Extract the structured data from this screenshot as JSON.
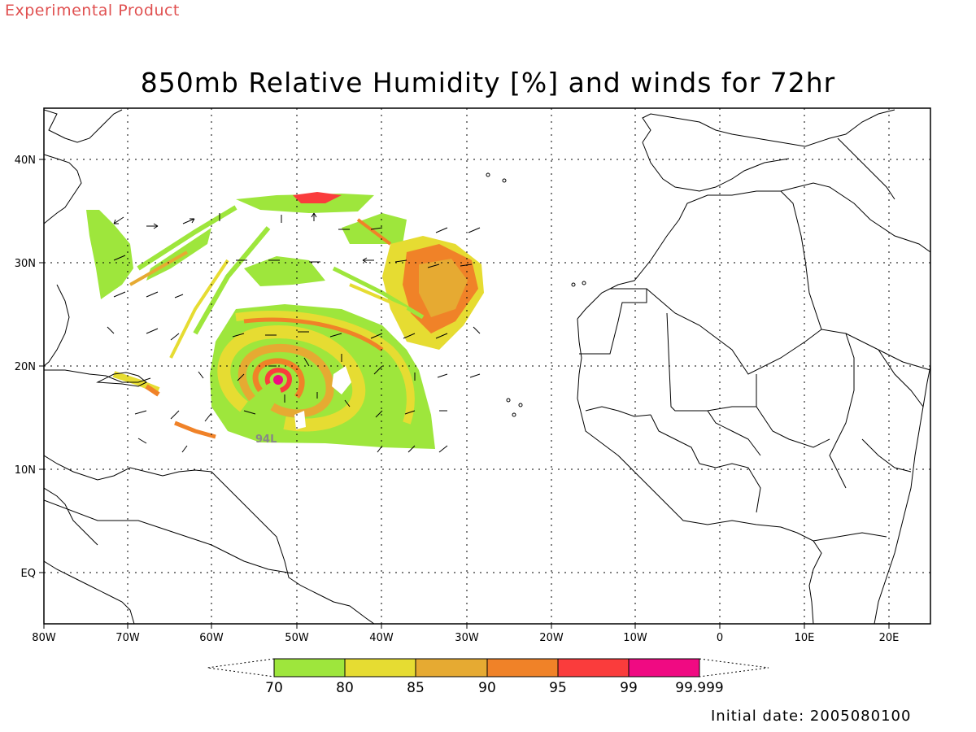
{
  "header": {
    "experimental_label": "Experimental Product",
    "title": "850mb Relative Humidity [%] and winds for 72hr"
  },
  "map": {
    "lon_range": [
      -80,
      25
    ],
    "lat_range": [
      -5,
      45
    ],
    "lon_ticks": [
      "80W",
      "70W",
      "60W",
      "50W",
      "40W",
      "30W",
      "20W",
      "10W",
      "0",
      "10E",
      "20E"
    ],
    "lat_ticks": [
      "EQ",
      "10N",
      "20N",
      "30N",
      "40N"
    ],
    "grid": true,
    "storm_label": "94L"
  },
  "colorbar": {
    "labels": [
      "70",
      "80",
      "85",
      "90",
      "95",
      "99",
      "99.999"
    ],
    "colors": [
      "#9ee63c",
      "#e6dc32",
      "#e6aa32",
      "#f08228",
      "#fa3c3c",
      "#f00a82"
    ]
  },
  "footer": {
    "initial_date": "Initial date: 2005080100"
  }
}
